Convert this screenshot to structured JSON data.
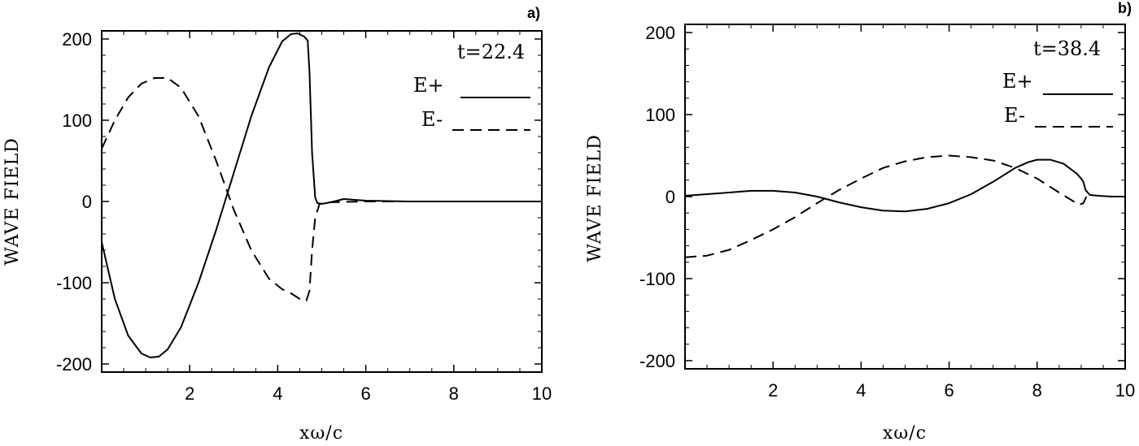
{
  "chart_data": [
    {
      "type": "line",
      "panel_label": "a)",
      "annotation": "t=22.4",
      "xlabel": "xω/c",
      "ylabel": "WAVE FIELD",
      "xlim": [
        0,
        10
      ],
      "ylim": [
        -210,
        210
      ],
      "xticks": [
        2,
        4,
        6,
        8,
        10
      ],
      "yticks": [
        -200,
        -100,
        0,
        100,
        200
      ],
      "legend_position": "top-right",
      "grid": false,
      "series": [
        {
          "name": "E+",
          "style": "solid",
          "x": [
            0,
            0.3,
            0.6,
            0.9,
            1.1,
            1.3,
            1.5,
            1.8,
            2.2,
            2.6,
            3.0,
            3.4,
            3.8,
            4.1,
            4.3,
            4.45,
            4.6,
            4.68,
            4.72,
            4.78,
            4.85,
            4.9,
            5.0,
            5.2,
            5.5,
            6.0,
            7.0,
            8.0,
            9.0,
            10.0
          ],
          "y": [
            -50,
            -120,
            -165,
            -187,
            -192,
            -191,
            -182,
            -155,
            -100,
            -35,
            35,
            105,
            165,
            197,
            206,
            207,
            203,
            198,
            160,
            60,
            5,
            -2,
            -3,
            -1,
            3,
            1,
            0,
            0,
            0,
            0
          ]
        },
        {
          "name": "E-",
          "style": "dashed",
          "x": [
            0,
            0.3,
            0.6,
            0.9,
            1.2,
            1.5,
            1.8,
            2.2,
            2.6,
            3.0,
            3.4,
            3.8,
            4.1,
            4.3,
            4.5,
            4.65,
            4.72,
            4.78,
            4.85,
            4.95,
            5.2,
            6.0,
            8.0,
            10.0
          ],
          "y": [
            65,
            100,
            128,
            145,
            152,
            152,
            140,
            105,
            50,
            -10,
            -60,
            -95,
            -108,
            -113,
            -120,
            -122,
            -110,
            -60,
            -20,
            -3,
            -1,
            0,
            0,
            0
          ]
        }
      ]
    },
    {
      "type": "line",
      "panel_label": "b)",
      "annotation": "t=38.4",
      "xlabel": "xω/c",
      "ylabel": "WAVE FIELD",
      "xlim": [
        0,
        10
      ],
      "ylim": [
        -210,
        210
      ],
      "xticks": [
        2,
        4,
        6,
        8,
        10
      ],
      "yticks": [
        -200,
        -100,
        0,
        100,
        200
      ],
      "legend_position": "top-right",
      "grid": false,
      "series": [
        {
          "name": "E+",
          "style": "solid",
          "x": [
            0,
            0.5,
            1.0,
            1.5,
            2.0,
            2.5,
            3.0,
            3.5,
            4.0,
            4.5,
            5.0,
            5.5,
            6.0,
            6.5,
            7.0,
            7.5,
            7.8,
            8.0,
            8.3,
            8.6,
            8.9,
            9.0,
            9.05,
            9.1,
            9.2,
            9.4,
            9.7,
            10.0
          ],
          "y": [
            1,
            3,
            5,
            7,
            7,
            5,
            0,
            -7,
            -13,
            -17,
            -18,
            -15,
            -8,
            3,
            18,
            35,
            42,
            45,
            45,
            40,
            28,
            22,
            18,
            8,
            2,
            1,
            0,
            0
          ]
        },
        {
          "name": "E-",
          "style": "dashed",
          "x": [
            0,
            0.5,
            1.0,
            1.5,
            2.0,
            2.5,
            3.0,
            3.5,
            4.0,
            4.5,
            5.0,
            5.5,
            6.0,
            6.5,
            7.0,
            7.5,
            8.0,
            8.5,
            8.8,
            8.95,
            9.05,
            9.12
          ],
          "y": [
            -74,
            -72,
            -65,
            -53,
            -40,
            -25,
            -8,
            8,
            22,
            35,
            43,
            48,
            50,
            48,
            44,
            35,
            22,
            5,
            -5,
            -10,
            -8,
            0
          ]
        }
      ]
    }
  ]
}
